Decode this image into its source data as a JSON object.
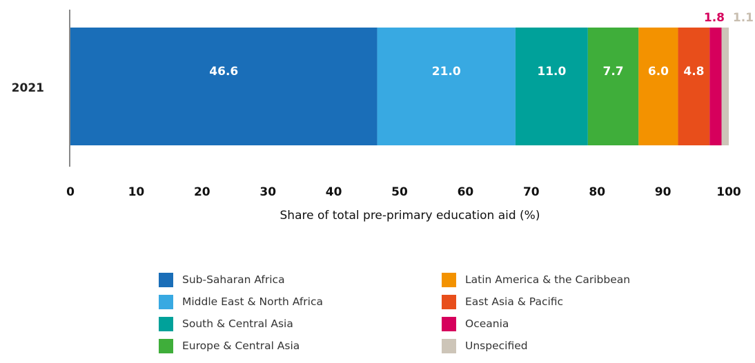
{
  "chart_data": {
    "type": "bar",
    "orientation": "horizontal",
    "stacked": true,
    "categories": [
      "2021"
    ],
    "xlabel": "Share of total pre-primary education aid (%)",
    "xlim": [
      0,
      100
    ],
    "xticks": [
      "0",
      "10",
      "20",
      "30",
      "40",
      "50",
      "60",
      "70",
      "80",
      "90",
      "100"
    ],
    "grid": false,
    "legend_position": "bottom",
    "series": [
      {
        "name": "Sub-Saharan Africa",
        "values": [
          46.6
        ],
        "label": "46.6",
        "color": "#1a6eb8",
        "label_color": "#ffffff"
      },
      {
        "name": "Middle East & North Africa",
        "values": [
          21.0
        ],
        "label": "21.0",
        "color": "#38a9e2",
        "label_color": "#ffffff"
      },
      {
        "name": "South & Central Asia",
        "values": [
          11.0
        ],
        "label": "11.0",
        "color": "#00a19a",
        "label_color": "#ffffff"
      },
      {
        "name": "Europe & Central Asia",
        "values": [
          7.7
        ],
        "label": "7.7",
        "color": "#3fae3a",
        "label_color": "#ffffff"
      },
      {
        "name": "Latin America & the Caribbean",
        "values": [
          6.0
        ],
        "label": "6.0",
        "color": "#f39200",
        "label_color": "#ffffff"
      },
      {
        "name": "East Asia & Pacific",
        "values": [
          4.8
        ],
        "label": "4.8",
        "color": "#e84e1b",
        "label_color": "#ffffff"
      },
      {
        "name": "Oceania",
        "values": [
          1.8
        ],
        "label": "1.8",
        "color": "#d6005c",
        "label_color": "#d6005c"
      },
      {
        "name": "Unspecified",
        "values": [
          1.1
        ],
        "label": "1.1",
        "color": "#cdc5b8",
        "label_color": "#c8beb0"
      }
    ]
  }
}
